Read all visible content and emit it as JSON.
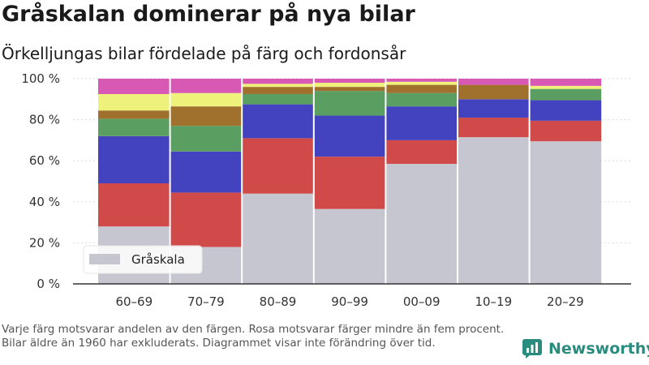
{
  "header": {
    "title": "Gråskalan dominerar på nya bilar",
    "subtitle": "Örkelljungas bilar fördelade på färg och fordonsår"
  },
  "footnote": "Varje färg motsvarar andelen av den färgen. Rosa motsvarar färger mindre än fem procent. Bilar äldre än 1960 har exkluderats. Diagrammet visar inte förändring över tid.",
  "brand": {
    "label": "Newsworthy",
    "icon": "newsworthy-logo-icon",
    "color": "#2a8c7e"
  },
  "chart_data": {
    "type": "bar",
    "stacked": true,
    "categories": [
      "60–69",
      "70–79",
      "80–89",
      "90–99",
      "00–09",
      "10–19",
      "20–29"
    ],
    "yticks": [
      "0 %",
      "20 %",
      "40 %",
      "60 %",
      "80 %",
      "100 %"
    ],
    "ylim": [
      0,
      100
    ],
    "grid": true,
    "legend": {
      "entries": [
        "Gråskala"
      ],
      "placement": "bottom-left"
    },
    "series": [
      {
        "name": "Gråskala",
        "color": "#c6c6d0",
        "values": [
          28,
          18,
          44,
          36.5,
          58.5,
          71.5,
          69.5
        ]
      },
      {
        "color": "#d14a4a",
        "values": [
          21,
          26.5,
          27,
          25.5,
          11.5,
          9.5,
          10
        ]
      },
      {
        "color": "#4343c0",
        "values": [
          23,
          20,
          16.5,
          20,
          16.5,
          9,
          10
        ]
      },
      {
        "color": "#5a9e62",
        "values": [
          8.5,
          12.5,
          5,
          12,
          6.5,
          0,
          5.5
        ]
      },
      {
        "color": "#a0702d",
        "values": [
          4,
          9.5,
          3.5,
          2,
          4,
          7,
          0
        ]
      },
      {
        "color": "#eef27a",
        "values": [
          8,
          6.5,
          1.5,
          2,
          1.5,
          0,
          1.5
        ]
      },
      {
        "color": "#d859b4",
        "values": [
          7.5,
          7,
          2.5,
          2,
          1.5,
          3,
          3.5
        ]
      }
    ]
  }
}
